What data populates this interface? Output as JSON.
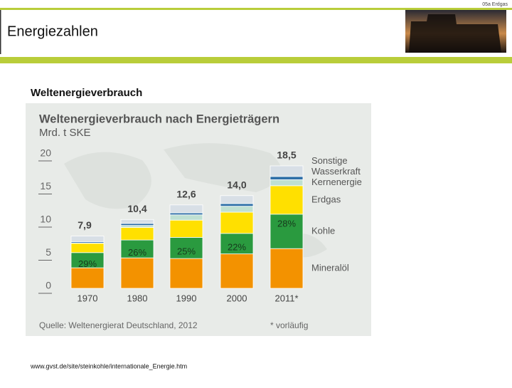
{
  "header": {
    "title": "Energiezahlen",
    "section": "05a Erdgas"
  },
  "subtitle": "Weltenergieverbrauch",
  "footer": "www.gvst.de/site/steinkohle/internationale_Energie.htm",
  "chart_data": {
    "type": "stacked_bar",
    "title": "Weltenergieverbrauch nach Energieträgern",
    "y_label": "Mrd. t SKE",
    "categories": [
      "1970",
      "1980",
      "1990",
      "2000",
      "2011*"
    ],
    "series": [
      {
        "name": "Mineralöl",
        "color": "#f39200",
        "values": [
          3.1,
          4.6,
          4.5,
          5.2,
          6.0
        ]
      },
      {
        "name": "Kohle",
        "color": "#2a9a3f",
        "values": [
          2.3,
          2.7,
          3.2,
          3.1,
          5.2
        ]
      },
      {
        "name": "Erdgas",
        "color": "#ffe000",
        "values": [
          1.4,
          1.9,
          2.6,
          3.2,
          4.3
        ]
      },
      {
        "name": "Kernenergie",
        "color": "#bfe0d2",
        "values": [
          0.05,
          0.3,
          0.8,
          0.9,
          0.9
        ]
      },
      {
        "name": "Wasserkraft",
        "color": "#2e6fa8",
        "values": [
          0.2,
          0.3,
          0.3,
          0.4,
          0.5
        ]
      },
      {
        "name": "Sonstige",
        "color": "#d8dfe6",
        "values": [
          0.85,
          0.6,
          1.2,
          1.2,
          1.6
        ]
      }
    ],
    "totals": [
      7.9,
      10.4,
      12.6,
      14.0,
      18.5
    ],
    "total_labels": [
      "7,9",
      "10,4",
      "12,6",
      "14,0",
      "18,5"
    ],
    "share_labels": [
      "29%",
      "26%",
      "25%",
      "22%",
      "28%"
    ],
    "ylim": [
      0,
      20
    ],
    "yticks": [
      0,
      5,
      10,
      15,
      20
    ],
    "source": "Quelle: Weltenergierat Deutschland, 2012",
    "footnote": "* vorläufig"
  }
}
